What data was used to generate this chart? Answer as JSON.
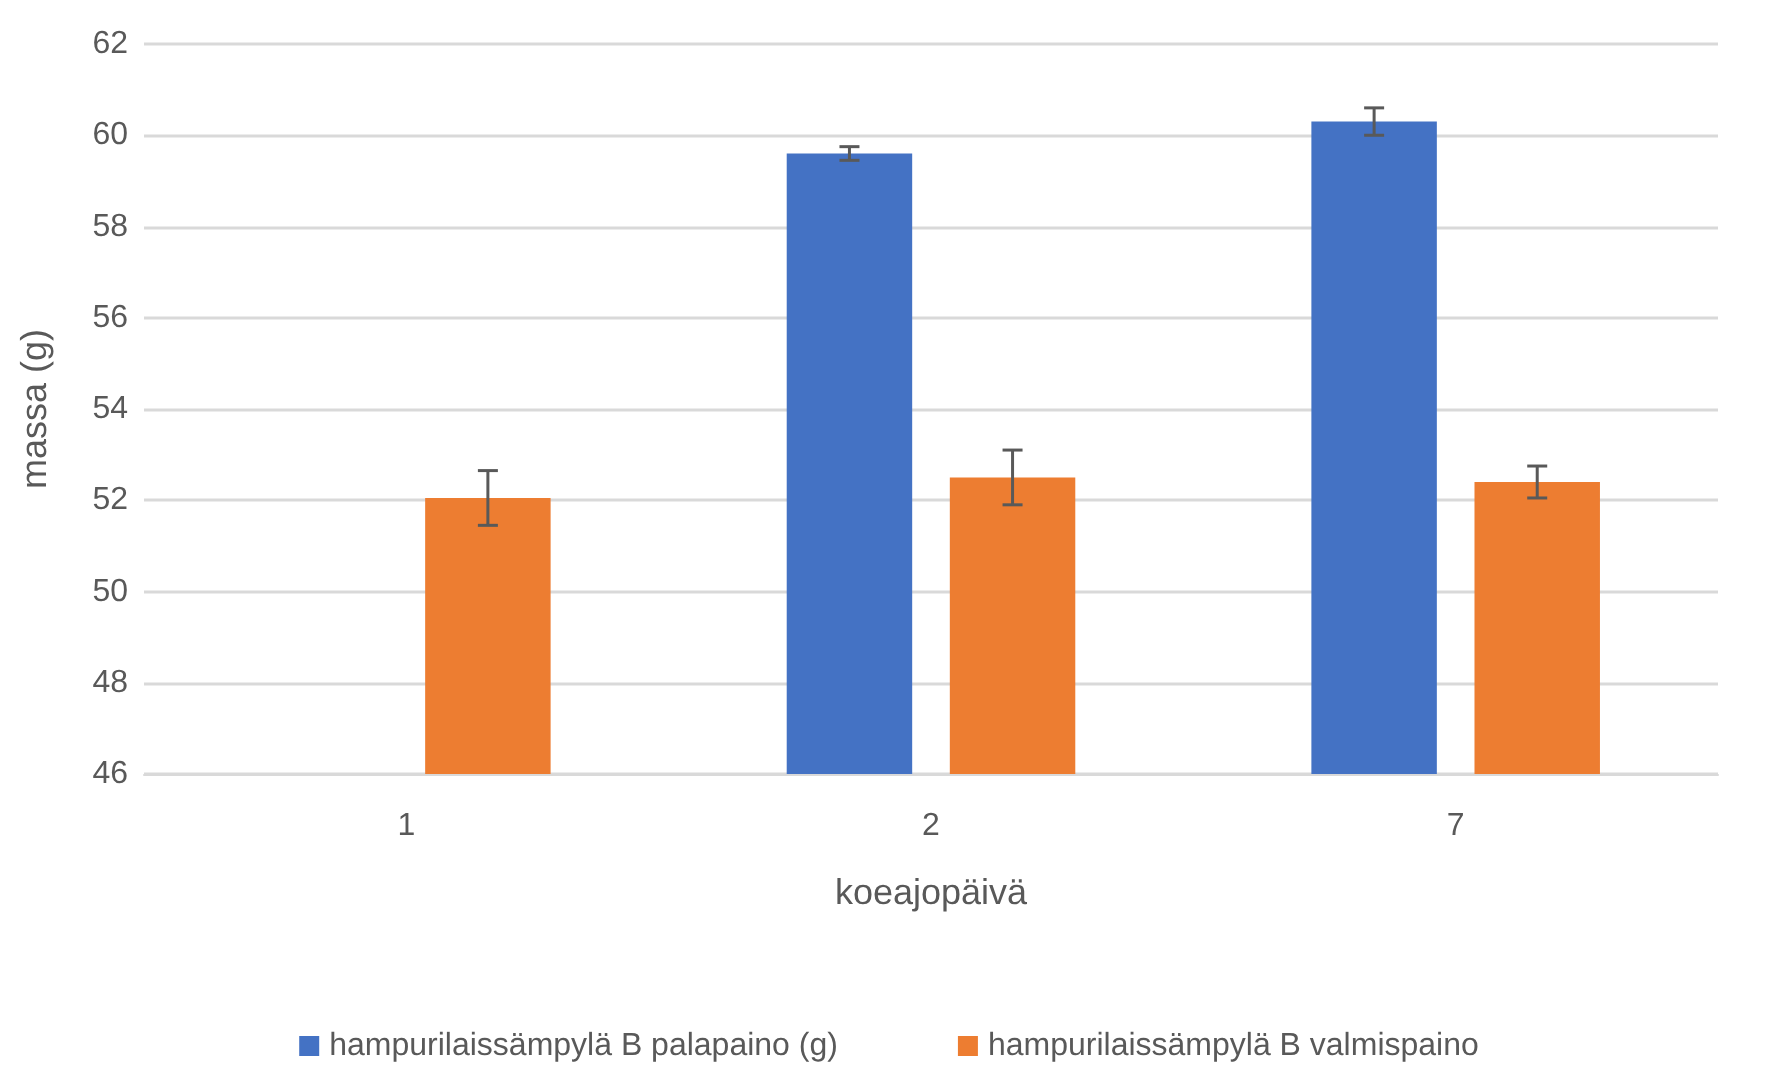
{
  "chart_data": {
    "type": "bar",
    "xlabel": "koeajopäivä",
    "ylabel": "massa (g)",
    "categories": [
      "1",
      "2",
      "7"
    ],
    "series": [
      {
        "name": "hampurilaissämpylä B palapaino (g)",
        "color": "#4472c4",
        "values": [
          null,
          59.6,
          60.3
        ],
        "errors": [
          null,
          0.15,
          0.3
        ]
      },
      {
        "name": "hampurilaissämpylä B valmispaino",
        "color": "#ed7d31",
        "values": [
          52.05,
          52.5,
          52.4
        ],
        "errors": [
          0.6,
          0.6,
          0.35
        ]
      }
    ],
    "ylim": [
      46,
      62
    ],
    "yticks": [
      46,
      48,
      50,
      52,
      54,
      56,
      58,
      60,
      62
    ],
    "grid": "y",
    "legend": "bottom"
  }
}
